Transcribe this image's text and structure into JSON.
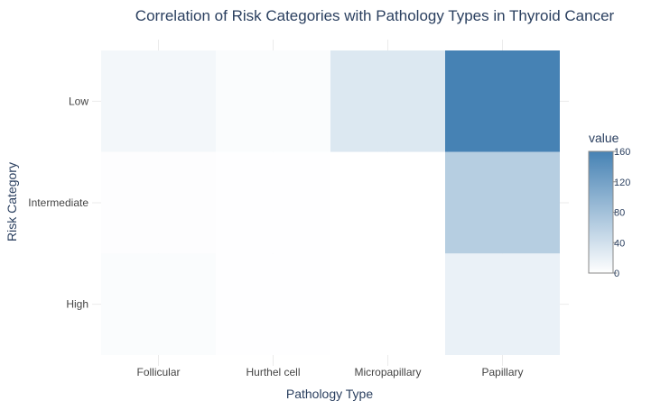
{
  "chart_data": {
    "type": "heatmap",
    "title": "Correlation of Risk Categories with Pathology Types in Thyroid Cancer",
    "xlabel": "Pathology Type",
    "ylabel": "Risk Category",
    "x_categories": [
      "Follicular",
      "Hurthel cell",
      "Micropapillary",
      "Papillary"
    ],
    "y_categories": [
      "Low",
      "Intermediate",
      "High"
    ],
    "values": [
      [
        10,
        4,
        30,
        160
      ],
      [
        2,
        1,
        0,
        63
      ],
      [
        4,
        1,
        0,
        18
      ]
    ],
    "colorscale": [
      "#ffffff",
      "#4682b4"
    ],
    "zmin": 0,
    "zmax": 160,
    "colorbar": {
      "title": "value",
      "ticks": [
        0,
        40,
        80,
        120,
        160
      ]
    },
    "grid": true
  }
}
